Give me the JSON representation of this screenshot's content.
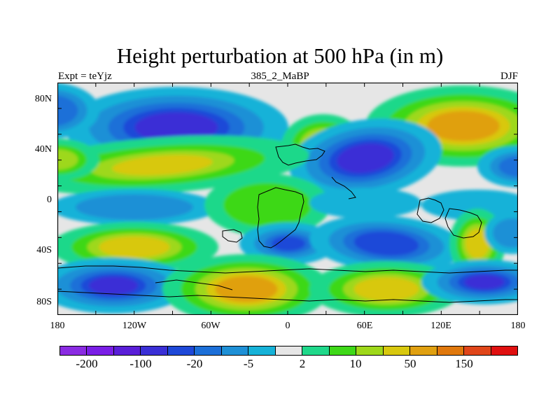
{
  "title": "Height perturbation at 500 hPa (in m)",
  "left_label": "Expt = teYjz",
  "center_label": "385_2_MaBP",
  "right_label": "DJF",
  "lat_labels": [
    "80N",
    "40N",
    "0",
    "40S",
    "80S"
  ],
  "lon_labels": [
    "180",
    "120W",
    "60W",
    "0",
    "60E",
    "120E",
    "180"
  ],
  "colorbar": {
    "colors": [
      "#8a2be2",
      "#7a1ee6",
      "#5a1ed8",
      "#3a2fd6",
      "#1e48d8",
      "#1c6fd8",
      "#1e90d6",
      "#16b2d8",
      "#e6e6e6",
      "#1fd88a",
      "#3ed818",
      "#9ed81a",
      "#d8c80e",
      "#e0a010",
      "#e0780c",
      "#e0461a",
      "#e01010"
    ],
    "labels": [
      "-200",
      "-100",
      "-20",
      "-5",
      "2",
      "10",
      "50",
      "150"
    ]
  },
  "field_colors": {
    "neutral": "#e6e6e6",
    "neg_light": "#16b2d8",
    "neg_mid": "#1e90d6",
    "neg_strong": "#1c6fd8",
    "neg_deep": "#1e48d8",
    "neg_core": "#3a2fd6",
    "pos_light": "#1fd88a",
    "pos_mid": "#3ed818",
    "pos_strong": "#9ed81a",
    "pos_deep": "#d8c80e",
    "pos_core": "#e0a010"
  }
}
